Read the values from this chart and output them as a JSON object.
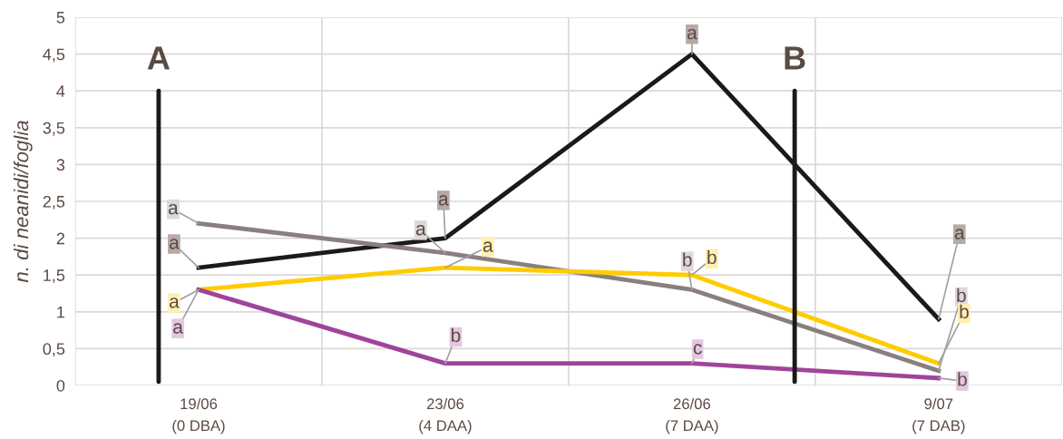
{
  "chart_data": {
    "type": "line",
    "ylabel": "n. di neanidi/foglia",
    "categories": [
      "19/06\n(0 DBA)",
      "23/06\n(4 DAA)",
      "26/06\n(7 DAA)",
      "9/07\n(7 DAB)"
    ],
    "series": [
      {
        "color": "#1a1a1a",
        "values": [
          1.6,
          2.0,
          4.5,
          0.9
        ]
      },
      {
        "color": "#8a7f7f",
        "values": [
          2.2,
          1.8,
          1.3,
          0.2
        ]
      },
      {
        "color": "#ffcc00",
        "values": [
          1.3,
          1.6,
          1.5,
          0.3
        ]
      },
      {
        "color": "#a0449a",
        "values": [
          1.3,
          0.3,
          0.3,
          0.1
        ]
      }
    ],
    "ylim": [
      0,
      5
    ],
    "yticks": [
      0,
      {
        "value": 0.5,
        "label": "0,5"
      },
      1,
      {
        "value": 1.5,
        "label": "1,5"
      },
      2,
      {
        "value": 2.5,
        "label": "2,5"
      },
      3,
      {
        "value": 3.5,
        "label": "3,5"
      },
      4,
      {
        "value": 4.5,
        "label": "4,5"
      },
      5
    ],
    "grid": true,
    "marker": "none",
    "line_style": "solid",
    "annotations": [
      "A",
      "B",
      {
        "text": "a",
        "x": "19/06\n(0 DBA)",
        "y": 2.2
      },
      {
        "text": "a",
        "x": "19/06\n(0 DBA)",
        "y": 1.6
      },
      {
        "text": "a",
        "x": "19/06\n(0 DBA)",
        "y": 1.3
      },
      {
        "text": "a",
        "x": "19/06\n(0 DBA)",
        "y": 1.3
      },
      {
        "text": "a",
        "x": "23/06\n(4 DAA)",
        "y": 1.8
      },
      {
        "text": "a",
        "x": "23/06\n(4 DAA)",
        "y": 1.6
      },
      {
        "text": "a",
        "x": "23/06\n(4 DAA)",
        "y": 2.0
      },
      {
        "text": "b",
        "x": "23/06\n(4 DAA)",
        "y": 0.3
      },
      {
        "text": "a",
        "x": "26/06\n(7 DAA)",
        "y": 4.5
      },
      {
        "text": "b",
        "x": "26/06\n(7 DAA)",
        "y": 1.3
      },
      {
        "text": "b",
        "x": "26/06\n(7 DAA)",
        "y": 1.5
      },
      {
        "text": "c",
        "x": "26/06\n(7 DAA)",
        "y": 0.3
      },
      {
        "text": "a",
        "x": "9/07\n(7 DAB)",
        "y": 0.9
      },
      {
        "text": "b",
        "x": "9/07\n(7 DAB)",
        "y": 0.2
      },
      {
        "text": "b",
        "x": "9/07\n(7 DAB)",
        "y": 0.3
      },
      {
        "text": "b",
        "x": "9/07\n(7 DAB)",
        "y": 0.1
      }
    ]
  }
}
